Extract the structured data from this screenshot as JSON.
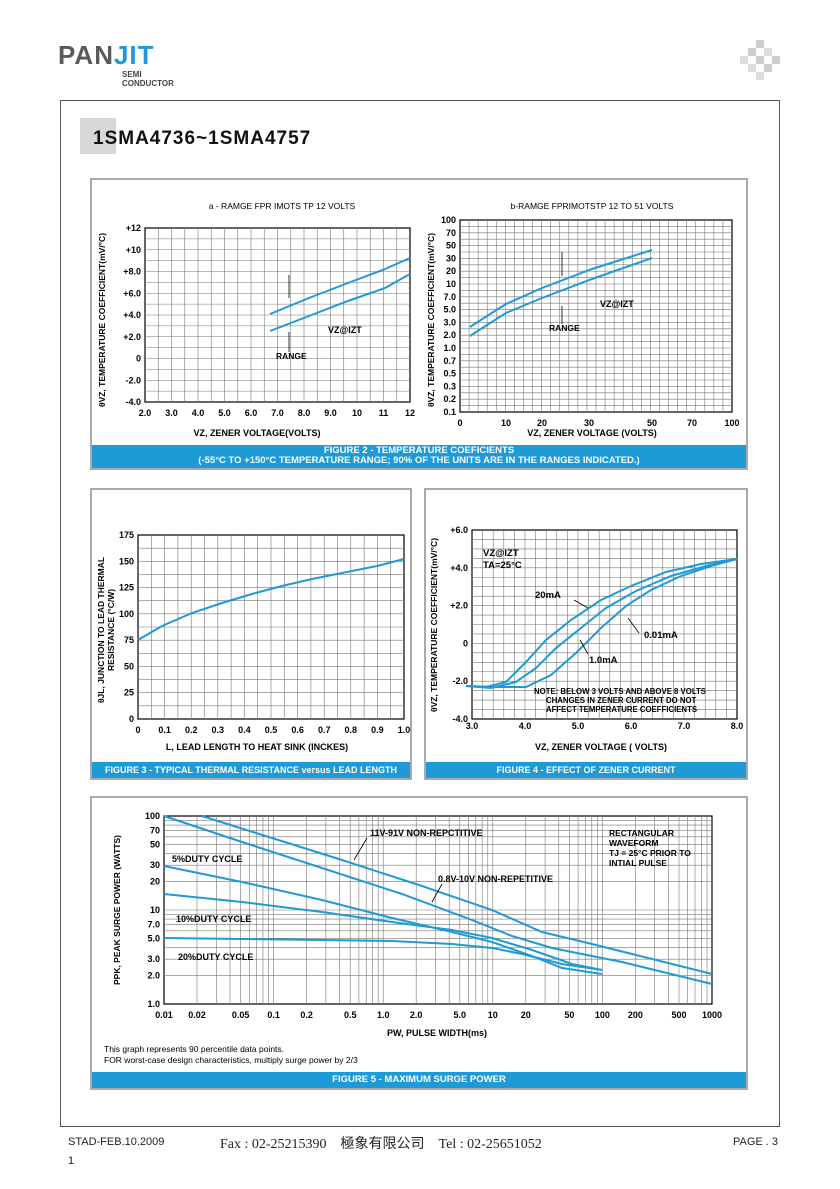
{
  "header": {
    "logo_pan": "PAN",
    "logo_jit": "JIT",
    "logo_sub1": "SEMI",
    "logo_sub2": "CONDUCTOR"
  },
  "title": "1SMA4736~1SMA4757",
  "fig2": {
    "left": {
      "title": "a - RAMGE FPR IMOTS TP 12 VOLTS",
      "ylabel": "θVZ, TEMPERATURE COEFFICIENT(mV/°C)",
      "xlabel": "VZ, ZENER VOLTAGE(VOLTS)",
      "yticks": [
        "+12",
        "+10",
        "+8.0",
        "+6.0",
        "+4.0",
        "+2.0",
        "0",
        "-2.0",
        "-4.0"
      ],
      "xticks": [
        "2.0",
        "3.0",
        "4.0",
        "5.0",
        "6.0",
        "7.0",
        "8.0",
        "9.0",
        "10",
        "11",
        "12"
      ],
      "range_label": "RANGE",
      "vz_label": "VZ@IZT"
    },
    "right": {
      "title": "b-RAMGE FPRIMOTSTP 12 TO 51 VOLTS",
      "ylabel": "θVZ, TEMPERATURE COEFFICIENT(mV/°C)",
      "xlabel": "VZ, ZENER VOLTAGE (VOLTS)",
      "yticks": [
        "100",
        "70",
        "50",
        "30",
        "20",
        "10",
        "7.0",
        "5.0",
        "3.0",
        "2.0",
        "1.0",
        "0.7",
        "0.5",
        "0.3",
        "0.2",
        "0.1"
      ],
      "xticks": [
        "0",
        "10",
        "20",
        "30",
        "50",
        "70",
        "100"
      ],
      "range_label": "RANGE",
      "vz_label": "VZ@IZT"
    },
    "caption1": "FIGURE 2 - TEMPERATURE COEFICIENTS",
    "caption2": "(-55°C TO +150°C TEMPERATURE RANGE; 90% OF THE UNITS ARE IN THE RANGES INDICATED.)"
  },
  "fig3": {
    "ylabel1": "θJL, JUNCTION TO LEAD THERMAL",
    "ylabel2": "RESISTANCE (°C/W)",
    "xlabel": "L, LEAD LENGTH TO HEAT SINK (INCKES)",
    "yticks": [
      "175",
      "150",
      "125",
      "100",
      "75",
      "50",
      "25",
      "0"
    ],
    "xticks": [
      "0",
      "0.1",
      "0.2",
      "0.3",
      "0.4",
      "0.5",
      "0.6",
      "0.7",
      "0.8",
      "0.9",
      "1.0"
    ],
    "caption": "FIGURE 3 - TYPICAL THERMAL RESISTANCE versus LEAD LENGTH"
  },
  "fig4": {
    "ylabel": "θVZ, TEMPERATURE COEFFICIENT(mV/°C)",
    "xlabel": "VZ, ZENER VOLTAGE ( VOLTS)",
    "yticks": [
      "+6.0",
      "+4.0",
      "+2.0",
      "0",
      "-2.0",
      "-4.0"
    ],
    "xticks": [
      "3.0",
      "4.0",
      "5.0",
      "6.0",
      "7.0",
      "8.0"
    ],
    "vz_label": "VZ@IZT",
    "ta_label": "TA=25°C",
    "label_20": "20mA",
    "label_001": "0.01mA",
    "label_10": "1.0mA",
    "note1": "NOTE: BELOW 3 VOLTS AND ABOVE 8 VOLTS",
    "note2": "CHANGES IN ZENER CURRENT DO NOT",
    "note3": "AFFECT TEMPERATURE COEFFICIENTS",
    "caption": "FIGURE 4 - EFFECT OF ZENER CURRENT"
  },
  "fig5": {
    "ylabel": "PPK, PEAK SURGE POWER (WATTS)",
    "xlabel": "PW, PULSE WIDTH(ms)",
    "yticks": [
      "100",
      "70",
      "50",
      "30",
      "20",
      "10",
      "7.0",
      "5.0",
      "3.0",
      "2.0",
      "1.0"
    ],
    "xticks": [
      "0.01",
      "0.02",
      "0.05",
      "0.1",
      "0.2",
      "0.5",
      "1.0",
      "2.0",
      "5.0",
      "10",
      "20",
      "50",
      "100",
      "200",
      "500",
      "1000"
    ],
    "label_11v": "11V-91V NON-REPCTITIVE",
    "label_08v": "0.8V-10V NON-REPETITIVE",
    "label_5": "5%DUTY CYCLE",
    "label_10": "10%DUTY CYCLE",
    "label_20": "20%DUTY CYCLE",
    "rect1": "RECTANGULAR",
    "rect2": "WAVEFORM",
    "rect3": "TJ = 25°C PRIOR TO",
    "rect4": "INTIAL PULSE",
    "note1": "This graph represents 90 percentile data points.",
    "note2": "FOR worst-case design characteristics, multiply surge power by 2/3",
    "caption": "FIGURE 5 - MAXIMUM SURGE POWER"
  },
  "footer": {
    "date": "STAD-FEB.10.2009",
    "contact": "Fax : 02-25215390    極象有限公司    Tel : 02-25651052",
    "page": "PAGE . 3",
    "num": "1"
  }
}
